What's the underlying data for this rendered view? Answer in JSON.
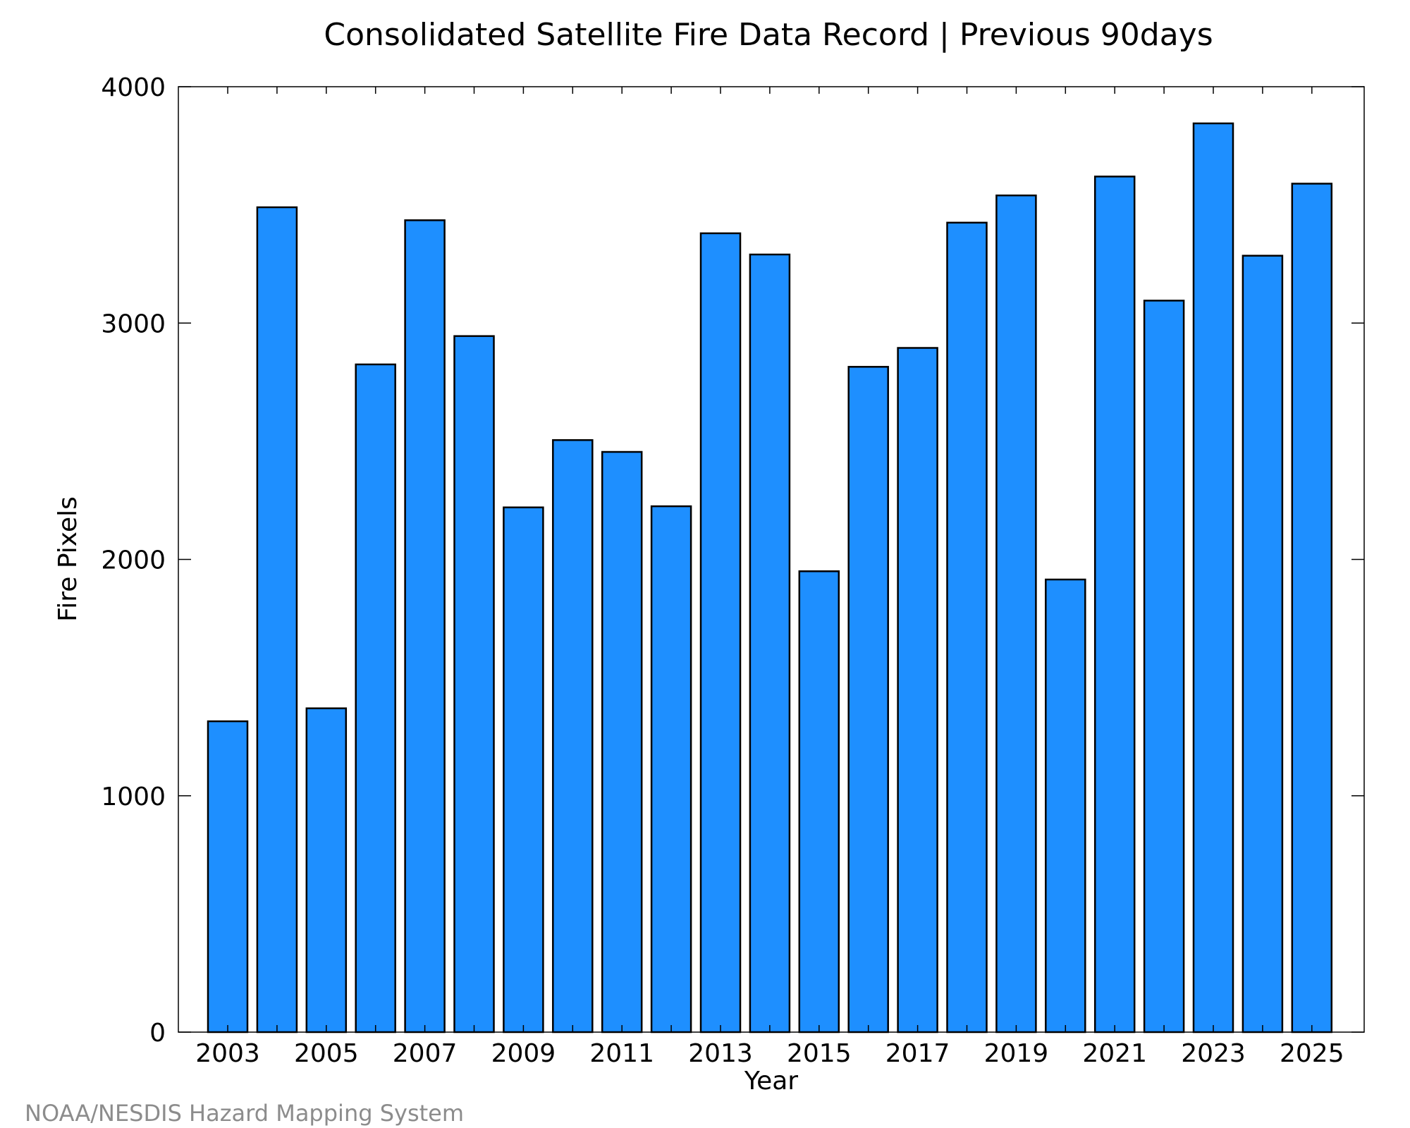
{
  "chart_data": {
    "type": "bar",
    "title": "Consolidated Satellite Fire Data Record | Previous 90days",
    "xlabel": "Year",
    "ylabel": "Fire Pixels",
    "categories": [
      "2003",
      "2004",
      "2005",
      "2006",
      "2007",
      "2008",
      "2009",
      "2010",
      "2011",
      "2012",
      "2013",
      "2014",
      "2015",
      "2016",
      "2017",
      "2018",
      "2019",
      "2020",
      "2021",
      "2022",
      "2023",
      "2024",
      "2025"
    ],
    "values": [
      1315,
      3490,
      1370,
      2825,
      3435,
      2945,
      2220,
      2505,
      2455,
      2225,
      3380,
      3290,
      1950,
      2815,
      2895,
      3425,
      3540,
      1915,
      3620,
      3095,
      3845,
      3285,
      3590
    ],
    "x_tick_labels": [
      "2003",
      "2005",
      "2007",
      "2009",
      "2011",
      "2013",
      "2015",
      "2017",
      "2019",
      "2021",
      "2023",
      "2025"
    ],
    "y_tick_labels": [
      "0",
      "1000",
      "2000",
      "3000",
      "4000"
    ],
    "ylim": [
      0,
      4000
    ],
    "bar_color": "#1e8fff",
    "grid": false
  },
  "footer": {
    "credit": "NOAA/NESDIS Hazard Mapping System"
  }
}
